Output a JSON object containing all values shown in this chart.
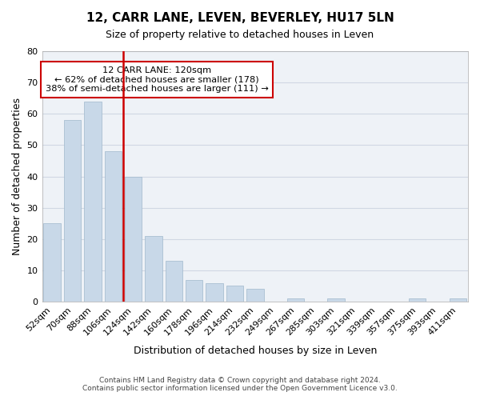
{
  "title": "12, CARR LANE, LEVEN, BEVERLEY, HU17 5LN",
  "subtitle": "Size of property relative to detached houses in Leven",
  "xlabel": "Distribution of detached houses by size in Leven",
  "ylabel": "Number of detached properties",
  "bar_labels": [
    "52sqm",
    "70sqm",
    "88sqm",
    "106sqm",
    "124sqm",
    "142sqm",
    "160sqm",
    "178sqm",
    "196sqm",
    "214sqm",
    "232sqm",
    "249sqm",
    "267sqm",
    "285sqm",
    "303sqm",
    "321sqm",
    "339sqm",
    "357sqm",
    "375sqm",
    "393sqm",
    "411sqm"
  ],
  "bar_values": [
    25,
    58,
    64,
    48,
    40,
    21,
    13,
    7,
    6,
    5,
    4,
    0,
    1,
    0,
    1,
    0,
    0,
    0,
    1,
    0,
    1
  ],
  "bar_color": "#c8d8e8",
  "bar_edge_color": "#a0b8cc",
  "reference_line_color": "#cc0000",
  "annotation_text_line1": "12 CARR LANE: 120sqm",
  "annotation_text_line2": "← 62% of detached houses are smaller (178)",
  "annotation_text_line3": "38% of semi-detached houses are larger (111) →",
  "annotation_box_color": "#cc0000",
  "ylim": [
    0,
    80
  ],
  "yticks": [
    0,
    10,
    20,
    30,
    40,
    50,
    60,
    70,
    80
  ],
  "grid_color": "#d0d8e4",
  "background_color": "#eef2f7",
  "footer_line1": "Contains HM Land Registry data © Crown copyright and database right 2024.",
  "footer_line2": "Contains public sector information licensed under the Open Government Licence v3.0."
}
